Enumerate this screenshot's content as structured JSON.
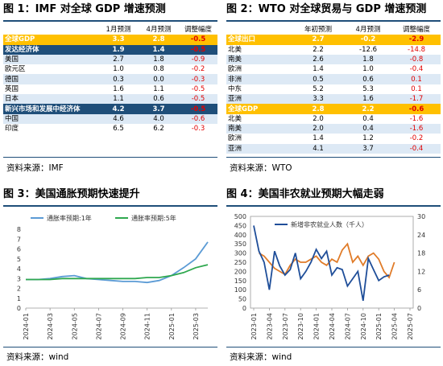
{
  "panel1": {
    "title": "图 1：IMF 对全球 GDP 增速预测",
    "source": "资料来源：IMF",
    "headers": [
      "",
      "1月预测",
      "4月预测",
      "调整幅度"
    ],
    "rows": [
      {
        "name": "全球GDP",
        "jan": "3.3",
        "apr": "2.8",
        "adj": "-0.5",
        "style": "yellow"
      },
      {
        "name": "发达经济体",
        "jan": "1.9",
        "apr": "1.4",
        "adj": "-0.5",
        "style": "blue"
      },
      {
        "name": "美国",
        "jan": "2.7",
        "apr": "1.8",
        "adj": "-0.9",
        "style": "light"
      },
      {
        "name": "欧元区",
        "jan": "1.0",
        "apr": "0.8",
        "adj": "-0.2",
        "style": "white"
      },
      {
        "name": "德国",
        "jan": "0.3",
        "apr": "0.0",
        "adj": "-0.3",
        "style": "light"
      },
      {
        "name": "英国",
        "jan": "1.6",
        "apr": "1.1",
        "adj": "-0.5",
        "style": "white"
      },
      {
        "name": "日本",
        "jan": "1.1",
        "apr": "0.6",
        "adj": "-0.5",
        "style": "light"
      },
      {
        "name": "新兴市场和发展中经济体",
        "jan": "4.2",
        "apr": "3.7",
        "adj": "-0.5",
        "style": "blue"
      },
      {
        "name": "中国",
        "jan": "4.6",
        "apr": "4.0",
        "adj": "-0.6",
        "style": "light"
      },
      {
        "name": "印度",
        "jan": "6.5",
        "apr": "6.2",
        "adj": "-0.3",
        "style": "white"
      }
    ]
  },
  "panel2": {
    "title": "图 2：WTO 对全球贸易与 GDP 增速预测",
    "source": "资料来源：WTO",
    "headers": [
      "",
      "年初预测",
      "4月预测",
      "调整幅度"
    ],
    "rows": [
      {
        "name": "全球出口",
        "jan": "2.7",
        "apr": "-0.2",
        "adj": "-2.9",
        "style": "yellow"
      },
      {
        "name": "北美",
        "jan": "2.2",
        "apr": "-12.6",
        "adj": "-14.8",
        "style": "white"
      },
      {
        "name": "南美",
        "jan": "2.6",
        "apr": "1.8",
        "adj": "-0.8",
        "style": "light"
      },
      {
        "name": "欧洲",
        "jan": "1.4",
        "apr": "1.0",
        "adj": "-0.4",
        "style": "white"
      },
      {
        "name": "非洲",
        "jan": "0.5",
        "apr": "0.6",
        "adj": "0.1",
        "style": "light"
      },
      {
        "name": "中东",
        "jan": "5.2",
        "apr": "5.3",
        "adj": "0.1",
        "style": "white"
      },
      {
        "name": "亚洲",
        "jan": "3.3",
        "apr": "1.6",
        "adj": "-1.7",
        "style": "light"
      },
      {
        "name": "全球GDP",
        "jan": "2.8",
        "apr": "2.2",
        "adj": "-0.6",
        "style": "yellow"
      },
      {
        "name": "北美",
        "jan": "2.0",
        "apr": "0.4",
        "adj": "-1.6",
        "style": "white"
      },
      {
        "name": "南美",
        "jan": "2.0",
        "apr": "0.4",
        "adj": "-1.6",
        "style": "light"
      },
      {
        "name": "欧洲",
        "jan": "1.4",
        "apr": "1.2",
        "adj": "-0.2",
        "style": "white"
      },
      {
        "name": "亚洲",
        "jan": "4.1",
        "apr": "3.7",
        "adj": "-0.4",
        "style": "light"
      }
    ]
  },
  "panel3": {
    "title": "图 3：美国通胀预期快速提升",
    "source": "资料来源：wind"
  },
  "panel4": {
    "title": "图 4：美国非农就业预期大幅走弱",
    "source": "资料来源：wind"
  },
  "chart_data": [
    {
      "type": "line",
      "legend_position": "top",
      "x": [
        "2024-01",
        "2024-02",
        "2024-03",
        "2024-04",
        "2024-05",
        "2024-06",
        "2024-07",
        "2024-08",
        "2024-09",
        "2024-10",
        "2024-11",
        "2024-12",
        "2025-01",
        "2025-02",
        "2025-03",
        "2025-04"
      ],
      "xticks": [
        "2024-01",
        "2024-03",
        "2024-05",
        "2024-07",
        "2024-09",
        "2024-11",
        "2025-01",
        "2025-03"
      ],
      "ylim": [
        0,
        8
      ],
      "yticks": [
        0,
        1,
        2,
        3,
        4,
        5,
        6,
        7,
        8
      ],
      "series": [
        {
          "name": "通胀率预期:1年",
          "color": "#5b9bd5",
          "values": [
            2.9,
            2.9,
            3.0,
            3.2,
            3.3,
            3.0,
            2.9,
            2.8,
            2.7,
            2.7,
            2.6,
            2.8,
            3.3,
            4.1,
            5.0,
            6.7
          ]
        },
        {
          "name": "通胀率预期:5年",
          "color": "#2fa84f",
          "values": [
            2.9,
            2.9,
            2.9,
            3.0,
            3.0,
            3.0,
            3.0,
            3.0,
            3.0,
            3.0,
            3.1,
            3.1,
            3.3,
            3.6,
            4.1,
            4.4
          ]
        }
      ]
    },
    {
      "type": "line",
      "legend_position": "top",
      "x": [
        "2023-01",
        "2023-02",
        "2023-03",
        "2023-04",
        "2023-05",
        "2023-06",
        "2023-07",
        "2023-08",
        "2023-09",
        "2023-10",
        "2023-11",
        "2023-12",
        "2024-01",
        "2024-02",
        "2024-03",
        "2024-04",
        "2024-05",
        "2024-06",
        "2024-07",
        "2024-08",
        "2024-09",
        "2024-10",
        "2024-11",
        "2024-12",
        "2025-01",
        "2025-02",
        "2025-03",
        "2025-04"
      ],
      "xticks": [
        "2023-01",
        "2023-04",
        "2023-07",
        "2023-10",
        "2024-01",
        "2024-04",
        "2024-07",
        "2024-10",
        "2025-01",
        "2025-04",
        "2025-07"
      ],
      "ylim_left": [
        0,
        500
      ],
      "yticks_left": [
        0,
        50,
        100,
        150,
        200,
        250,
        300,
        350,
        400,
        450,
        500
      ],
      "ylim_right": [
        0,
        30
      ],
      "yticks_right": [
        0,
        6,
        12,
        18,
        24,
        30
      ],
      "series": [
        {
          "name": "新增非农就业人数（千人）",
          "axis": "left",
          "color": "#1f4e99",
          "values": [
            450,
            310,
            250,
            100,
            310,
            230,
            180,
            210,
            300,
            160,
            200,
            250,
            320,
            270,
            310,
            180,
            220,
            210,
            120,
            160,
            200,
            40,
            270,
            210,
            150,
            170,
            180,
            null
          ]
        },
        {
          "name": "",
          "axis": "right",
          "color": "#e07b28",
          "values": [
            null,
            18,
            17,
            15,
            13,
            12,
            11,
            14,
            16,
            15,
            15,
            16,
            17,
            15,
            14,
            16,
            15,
            19,
            21,
            15,
            17,
            14,
            17,
            18,
            16,
            12,
            10,
            15
          ]
        }
      ]
    }
  ]
}
